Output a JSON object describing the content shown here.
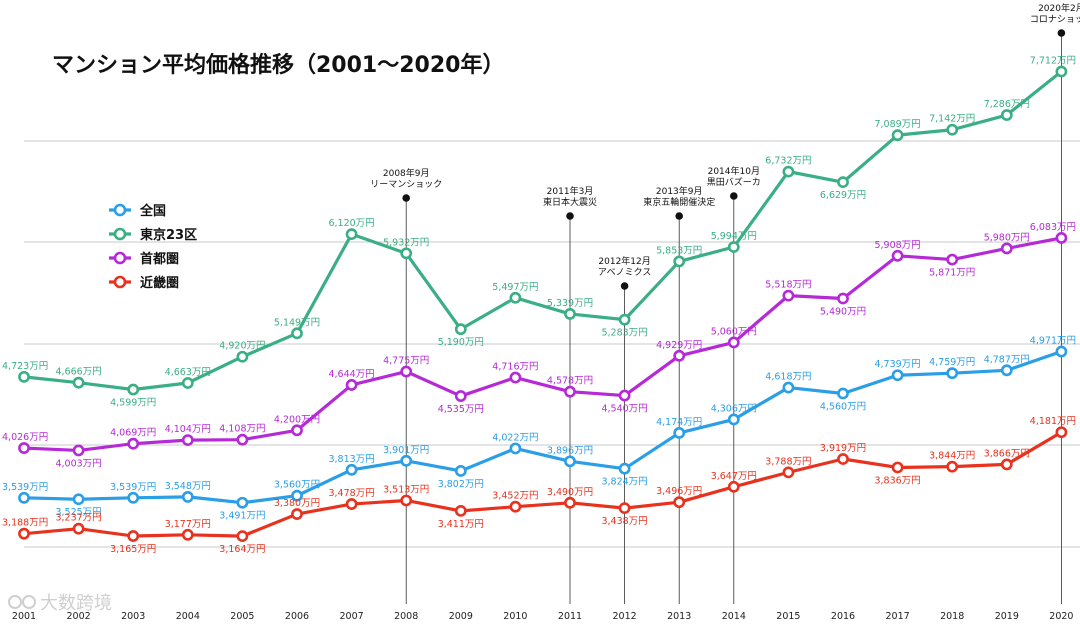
{
  "chart_data": {
    "type": "line",
    "title": "マンション平均価格推移（2001〜2020年）",
    "x": [
      "2001",
      "2002",
      "2003",
      "2004",
      "2005",
      "2006",
      "2007",
      "2008",
      "2009",
      "2010",
      "2011",
      "2012",
      "2013",
      "2014",
      "2015",
      "2016",
      "2017",
      "2018",
      "2019",
      "2020"
    ],
    "ylim": [
      2500,
      8200
    ],
    "grid": "horizontal",
    "legend": "left",
    "series": [
      {
        "name": "全国",
        "color": "#2a9ee6",
        "values": [
          3539,
          3525,
          3539,
          3548,
          3491,
          3560,
          3813,
          3901,
          3802,
          4022,
          3896,
          3824,
          4174,
          4306,
          4618,
          4560,
          4739,
          4759,
          4787,
          4971
        ],
        "labels": [
          "3,539万円",
          "3,525万円",
          "3,539万円",
          "3,548万円",
          "3,491万円",
          "3,560万円",
          "3,813万円",
          "3,901万円",
          "3,802万円",
          "4,022万円",
          "3,896万円",
          "3,824万円",
          "4,174万円",
          "4,306万円",
          "4,618万円",
          "4,560万円",
          "4,739万円",
          "4,759万円",
          "4,787万円",
          "4,971万円"
        ]
      },
      {
        "name": "東京23区",
        "color": "#3aae84",
        "values": [
          4723,
          4666,
          4599,
          4663,
          4920,
          5149,
          6120,
          5932,
          5190,
          5497,
          5339,
          5283,
          5853,
          5994,
          6732,
          6629,
          7089,
          7142,
          7286,
          7712
        ],
        "labels": [
          "4,723万円",
          "4,666万円",
          "4,599万円",
          "4,663万円",
          "4,920万円",
          "5,149万円",
          "6,120万円",
          "5,932万円",
          "5,190万円",
          "5,497万円",
          "5,339万円",
          "5,283万円",
          "5,853万円",
          "5,994万円",
          "6,732万円",
          "6,629万円",
          "7,089万円",
          "7,142万円",
          "7,286万円",
          "7,712万円"
        ]
      },
      {
        "name": "首都圏",
        "color": "#b52ad6",
        "values": [
          4026,
          4003,
          4069,
          4104,
          4108,
          4200,
          4644,
          4775,
          4535,
          4716,
          4578,
          4540,
          4929,
          5060,
          5518,
          5490,
          5908,
          5871,
          5980,
          6083
        ],
        "labels": [
          "4,026万円",
          "4,003万円",
          "4,069万円",
          "4,104万円",
          "4,108万円",
          "4,200万円",
          "4,644万円",
          "4,775万円",
          "4,535万円",
          "4,716万円",
          "4,578万円",
          "4,540万円",
          "4,929万円",
          "5,060万円",
          "5,518万円",
          "5,490万円",
          "5,908万円",
          "5,871万円",
          "5,980万円",
          "6,083万円"
        ]
      },
      {
        "name": "近畿圏",
        "color": "#e8321e",
        "values": [
          3188,
          3237,
          3165,
          3177,
          3164,
          3380,
          3478,
          3513,
          3411,
          3452,
          3490,
          3438,
          3496,
          3647,
          3788,
          3919,
          3836,
          3844,
          3866,
          4181
        ],
        "labels": [
          "3,188万円",
          "3,237万円",
          "3,165万円",
          "3,177万円",
          "3,164万円",
          "3,380万円",
          "3,478万円",
          "3,513万円",
          "3,411万円",
          "3,452万円",
          "3,490万円",
          "3,438万円",
          "3,496万円",
          "3,647万円",
          "3,788万円",
          "3,919万円",
          "3,836万円",
          "3,844万円",
          "3,866万円",
          "4,181万円"
        ]
      }
    ],
    "annotations": [
      {
        "x": "2008",
        "lines": [
          "2008年9月",
          "リーマンショック"
        ]
      },
      {
        "x": "2011",
        "lines": [
          "2011年3月",
          "東日本大震災"
        ]
      },
      {
        "x": "2012",
        "lines": [
          "2012年12月",
          "アベノミクス"
        ]
      },
      {
        "x": "2013",
        "lines": [
          "2013年9月",
          "東京五輪開催決定"
        ]
      },
      {
        "x": "2014",
        "lines": [
          "2014年10月",
          "黒田バズーカ"
        ]
      },
      {
        "x": "2020",
        "lines": [
          "2020年2月",
          "コロナショック"
        ]
      }
    ]
  },
  "watermark": "大数跨境"
}
